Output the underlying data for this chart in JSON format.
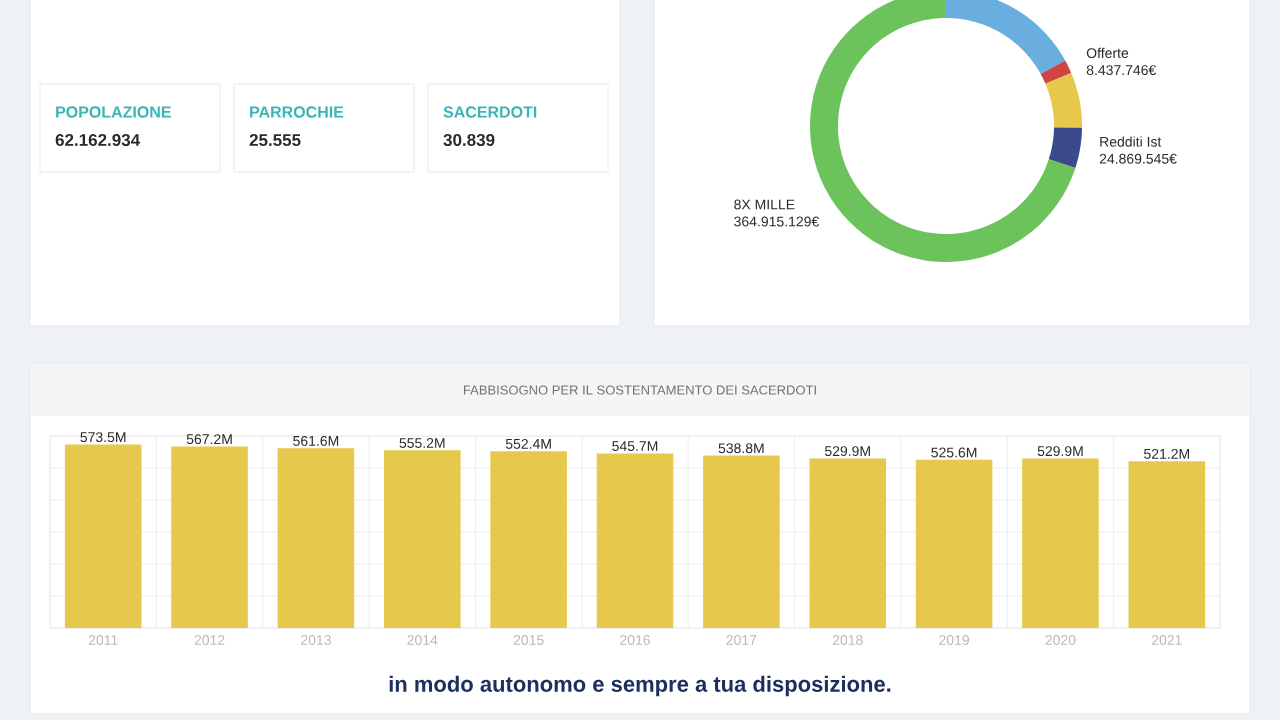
{
  "chart_data": [
    {
      "type": "other",
      "annotations": [
        "POPOLAZIONE",
        "62.162.934",
        "PARROCHIE",
        "25.555",
        "SACERDOTI",
        "30.839"
      ]
    },
    {
      "type": "donut",
      "categories": [
        null,
        "Offerte",
        null,
        "Redditi Ist",
        "8X MILLE"
      ],
      "values": [
        88600000,
        8437746,
        34400000,
        24869545,
        364915129
      ],
      "value_labels": [
        null,
        "8.437.746€",
        null,
        "24.869.545€",
        "364.915.129€"
      ],
      "colors": [
        "#6aaee0",
        "#d04444",
        "#e8c84a",
        "#3a4a8c",
        "#6cc35c"
      ]
    },
    {
      "type": "bar",
      "title": "FABBISOGNO PER IL SOSTENTAMENTO DEI SACERDOTI",
      "categories": [
        "2011",
        "2012",
        "2013",
        "2014",
        "2015",
        "2016",
        "2017",
        "2018",
        "2019",
        "2020",
        "2021"
      ],
      "values": [
        573.5,
        567.2,
        561.6,
        555.2,
        552.4,
        545.7,
        538.8,
        529.9,
        525.6,
        529.9,
        521.2
      ],
      "value_labels": [
        "573.5M",
        "567.2M",
        "561.6M",
        "555.2M",
        "552.4M",
        "545.7M",
        "538.8M",
        "529.9M",
        "525.6M",
        "529.9M",
        "521.2M"
      ],
      "color": "#e6c94c",
      "ylim": [
        0,
        600
      ],
      "yticks": [
        {
          "value": 0,
          "label": null
        },
        {
          "value": 100,
          "label": null
        },
        {
          "value": 200,
          "label": null
        },
        {
          "value": 300,
          "label": null
        },
        {
          "value": 400,
          "label": null
        },
        {
          "value": 500,
          "label": null
        },
        {
          "value": 600,
          "label": null
        }
      ],
      "grid": true,
      "tick_labels": "x",
      "annotations": [
        "in modo autonomo e sempre a tua disposizione."
      ]
    }
  ]
}
